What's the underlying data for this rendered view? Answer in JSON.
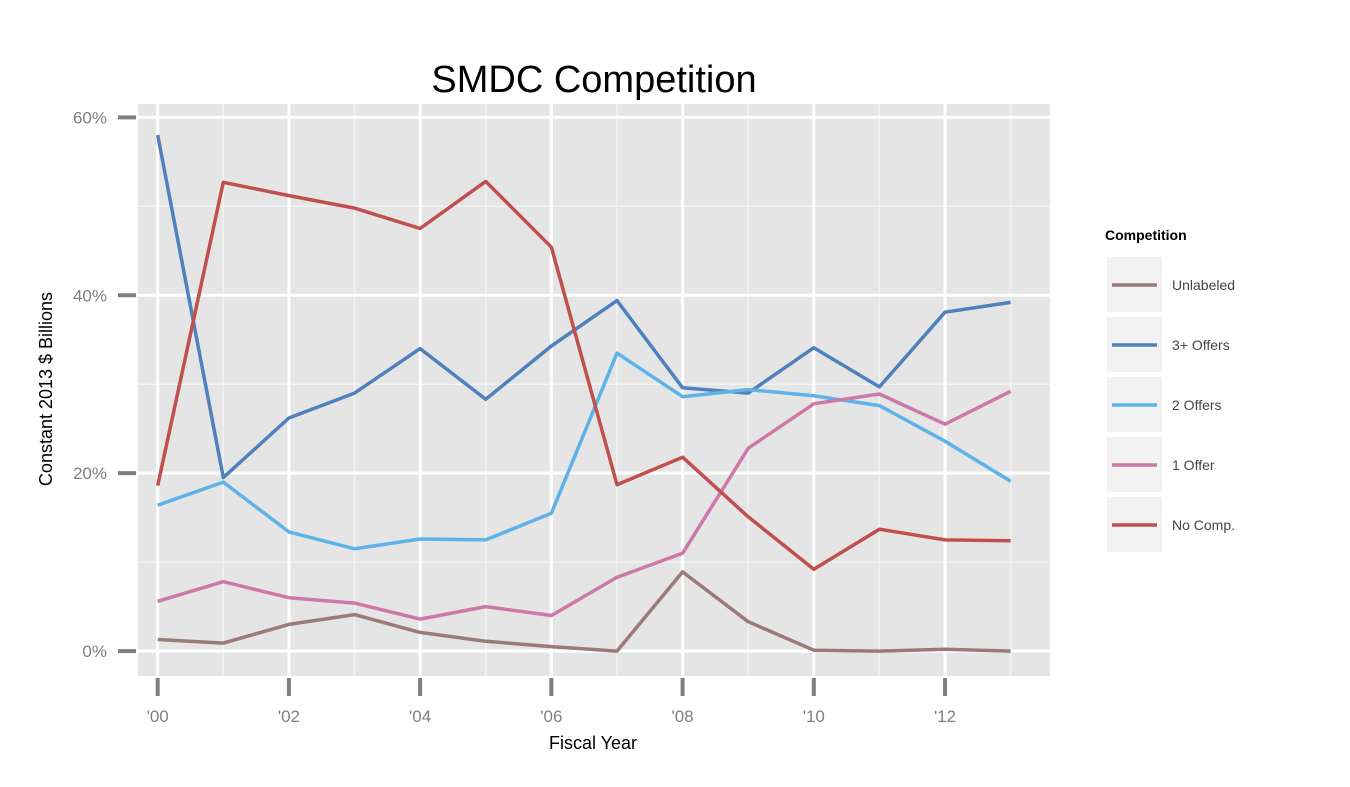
{
  "chart_data": {
    "type": "line",
    "title": "SMDC Competition",
    "xlabel": "Fiscal Year",
    "ylabel": "Constant 2013 $ Billions",
    "x": [
      2000,
      2001,
      2002,
      2003,
      2004,
      2005,
      2006,
      2007,
      2008,
      2009,
      2010,
      2011,
      2012,
      2013
    ],
    "xlim": [
      1999.7,
      2013.6
    ],
    "ylim": [
      -2.8,
      61.5
    ],
    "x_ticks": [
      {
        "value": 2000,
        "label": "'00"
      },
      {
        "value": 2002,
        "label": "'02"
      },
      {
        "value": 2004,
        "label": "'04"
      },
      {
        "value": 2006,
        "label": "'06"
      },
      {
        "value": 2008,
        "label": "'08"
      },
      {
        "value": 2010,
        "label": "'10"
      },
      {
        "value": 2012,
        "label": "'12"
      }
    ],
    "y_ticks": [
      {
        "value": 0,
        "label": "0%"
      },
      {
        "value": 20,
        "label": "20%"
      },
      {
        "value": 40,
        "label": "40%"
      },
      {
        "value": 60,
        "label": "60%"
      }
    ],
    "y_minor_ticks": [
      10,
      30,
      50
    ],
    "x_minor_ticks": [
      2001,
      2003,
      2005,
      2007,
      2009,
      2011,
      2013
    ],
    "grid": true,
    "legend": {
      "title": "Competition",
      "position": "right"
    },
    "series": [
      {
        "name": "Unlabeled",
        "color": "#9B7A78",
        "values": [
          1.3,
          0.9,
          3.0,
          4.1,
          2.1,
          1.1,
          0.5,
          0.0,
          8.9,
          3.3,
          0.1,
          0.0,
          0.2,
          0.0
        ]
      },
      {
        "name": "3+ Offers",
        "color": "#4F81BD",
        "values": [
          58.0,
          19.5,
          26.2,
          29.0,
          34.0,
          28.3,
          34.3,
          39.4,
          29.6,
          29.0,
          34.1,
          29.7,
          38.1,
          39.2
        ]
      },
      {
        "name": "2 Offers",
        "color": "#5DB3E8",
        "values": [
          16.4,
          19.0,
          13.4,
          11.5,
          12.6,
          12.5,
          15.5,
          33.5,
          28.6,
          29.4,
          28.7,
          27.6,
          23.6,
          19.1
        ]
      },
      {
        "name": "1 Offer",
        "color": "#CC78A8",
        "values": [
          5.6,
          7.8,
          6.0,
          5.4,
          3.6,
          5.0,
          4.0,
          8.3,
          11.0,
          22.8,
          27.8,
          28.9,
          25.5,
          29.2
        ]
      },
      {
        "name": "No Comp.",
        "color": "#C0504D",
        "values": [
          18.6,
          52.7,
          51.2,
          49.8,
          47.5,
          52.8,
          45.4,
          18.7,
          21.8,
          15.1,
          9.2,
          13.7,
          12.5,
          12.4
        ]
      }
    ],
    "plot_background": "#E5E5E5",
    "grid_color": "#FFFFFF",
    "legend_key_background": "#F2F2F2"
  }
}
